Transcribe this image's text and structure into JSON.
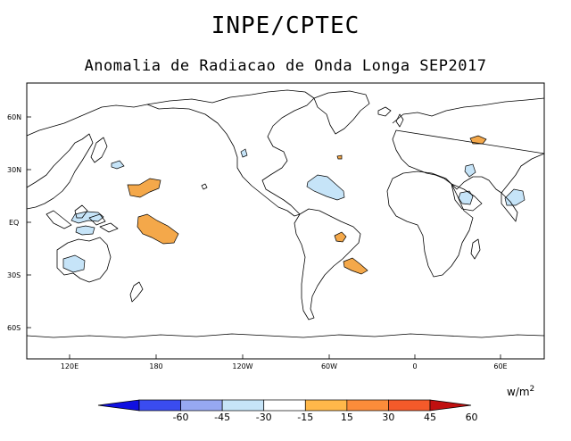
{
  "header": {
    "title": "INPE/CPTEC",
    "subtitle": "Anomalia de Radiacao de Onda Longa SEP2017"
  },
  "map": {
    "lat_labels": [
      "60N",
      "30N",
      "EQ",
      "30S",
      "60S"
    ],
    "lon_labels": [
      "120E",
      "180",
      "120W",
      "60W",
      "0",
      "60E"
    ]
  },
  "colorbar": {
    "units_base": "w/m",
    "units_exp": "2",
    "ticks": [
      "-60",
      "-45",
      "-30",
      "-15",
      "15",
      "30",
      "45",
      "60"
    ],
    "colors": [
      "#1010e0",
      "#3a4cf0",
      "#96a8f2",
      "#c6e4f8",
      "#ffffff",
      "#ffb84a",
      "#fb8c3a",
      "#f45a2a",
      "#c01010"
    ]
  },
  "anomalies": {
    "positive_color": "#f4a84a",
    "negative_color": "#c6e4f8"
  }
}
